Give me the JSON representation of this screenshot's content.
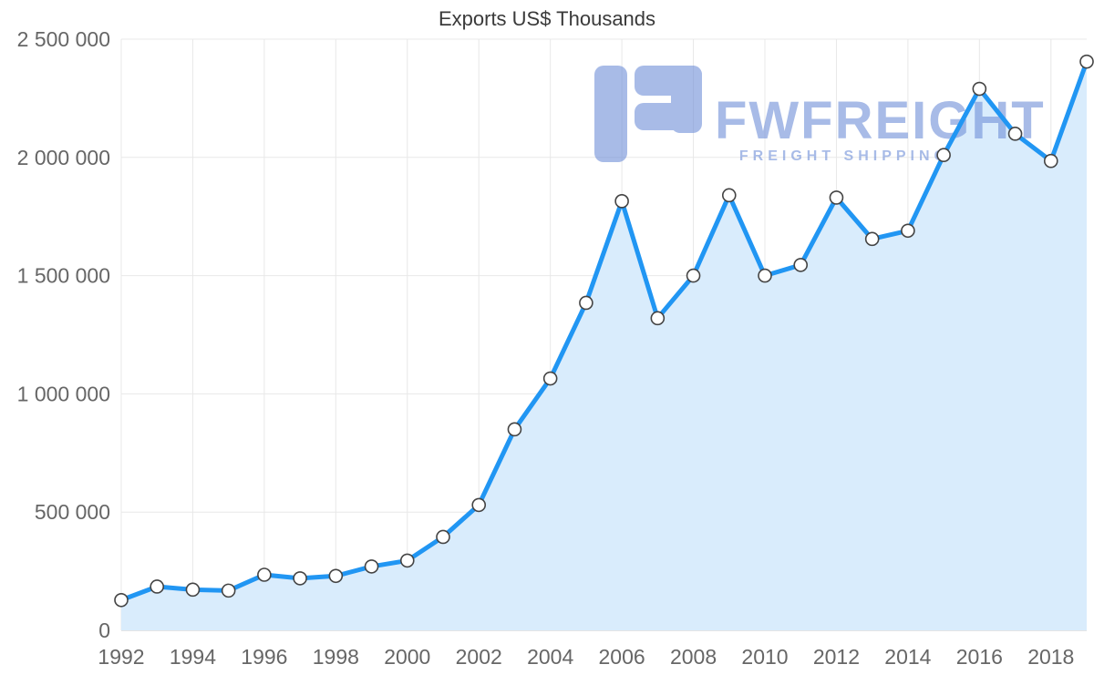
{
  "chart_data": {
    "type": "area",
    "title": "Exports US$ Thousands",
    "xlabel": "",
    "ylabel": "",
    "grid": true,
    "legend": "none",
    "ylim": [
      0,
      2500000
    ],
    "x": [
      1992,
      1993,
      1994,
      1995,
      1996,
      1997,
      1998,
      1999,
      2000,
      2001,
      2002,
      2003,
      2004,
      2005,
      2006,
      2007,
      2008,
      2009,
      2010,
      2011,
      2012,
      2013,
      2014,
      2015,
      2016,
      2017,
      2018,
      2019
    ],
    "values": [
      128000,
      185000,
      172000,
      168000,
      235000,
      220000,
      230000,
      270000,
      295000,
      395000,
      530000,
      850000,
      1065000,
      1385000,
      1815000,
      1320000,
      1500000,
      1840000,
      1500000,
      1545000,
      1830000,
      1655000,
      1690000,
      2010000,
      2290000,
      2100000,
      1985000,
      2405000
    ],
    "yticks": [
      {
        "value": 0,
        "label": "0"
      },
      {
        "value": 500000,
        "label": "500 000"
      },
      {
        "value": 1000000,
        "label": "1 000 000"
      },
      {
        "value": 1500000,
        "label": "1 500 000"
      },
      {
        "value": 2000000,
        "label": "2 000 000"
      },
      {
        "value": 2500000,
        "label": "2 500 000"
      }
    ],
    "xticks": [
      1992,
      1994,
      1996,
      1998,
      2000,
      2002,
      2004,
      2006,
      2008,
      2010,
      2012,
      2014,
      2016,
      2018
    ],
    "xtick_labels": [
      "1992",
      "1994",
      "1996",
      "1998",
      "2000",
      "2002",
      "2004",
      "2006",
      "2008",
      "2010",
      "2012",
      "2014",
      "2016",
      "2018"
    ],
    "colors": {
      "line": "#2196f3",
      "area": "#d9ecfc",
      "grid": "#e8e8e8",
      "axis": "#c9c9c9",
      "tick_text": "#666666",
      "title_text": "#3a3a3a",
      "marker_fill": "#ffffff",
      "marker_stroke": "#444444",
      "watermark": "#6f8fd8"
    }
  },
  "watermark": {
    "brand": "FWFREIGHT",
    "tagline": "FREIGHT SHIPPING"
  }
}
